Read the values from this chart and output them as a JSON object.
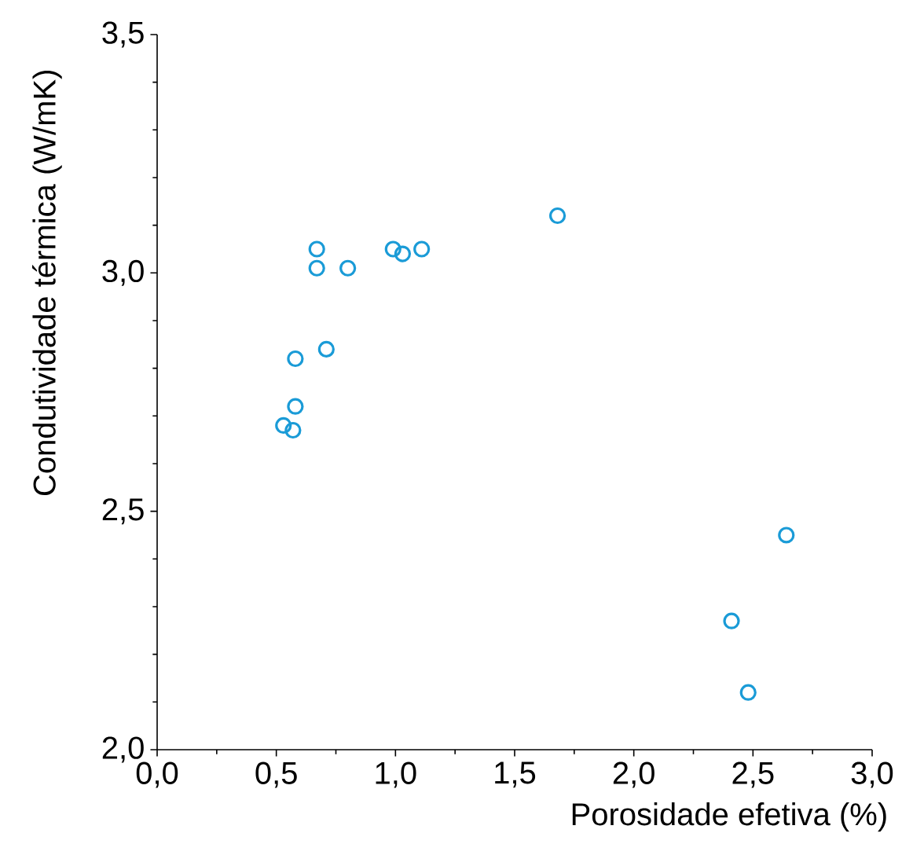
{
  "chart_data": {
    "type": "scatter",
    "xlabel": "Porosidade efetiva (%)",
    "ylabel": "Condutividade térmica (W/mK)",
    "x": [
      0.53,
      0.57,
      0.58,
      0.58,
      0.67,
      0.67,
      0.71,
      0.8,
      0.99,
      1.03,
      1.11,
      1.68,
      2.41,
      2.48,
      2.64
    ],
    "series": [
      {
        "color": "#1a9bd7",
        "values": [
          2.68,
          2.67,
          2.72,
          2.82,
          3.05,
          3.01,
          2.84,
          3.01,
          3.05,
          3.04,
          3.05,
          3.12,
          2.27,
          2.12,
          2.45
        ]
      }
    ],
    "xlim": [
      0,
      3
    ],
    "ylim": [
      2,
      3.5
    ],
    "xticks": [
      {
        "value": 0,
        "label": "0,0"
      },
      {
        "value": 0.5,
        "label": "0,5"
      },
      {
        "value": 1,
        "label": "1,0"
      },
      {
        "value": 1.5,
        "label": "1,5"
      },
      {
        "value": 2,
        "label": "2,0"
      },
      {
        "value": 2.5,
        "label": "2,5"
      },
      {
        "value": 3,
        "label": "3,0"
      }
    ],
    "yticks": [
      {
        "value": 2,
        "label": "2,0"
      },
      {
        "value": 2.5,
        "label": "2,5"
      },
      {
        "value": 3,
        "label": "3,0"
      },
      {
        "value": 3.5,
        "label": "3,5"
      }
    ],
    "marker": "circle",
    "grid": false
  }
}
